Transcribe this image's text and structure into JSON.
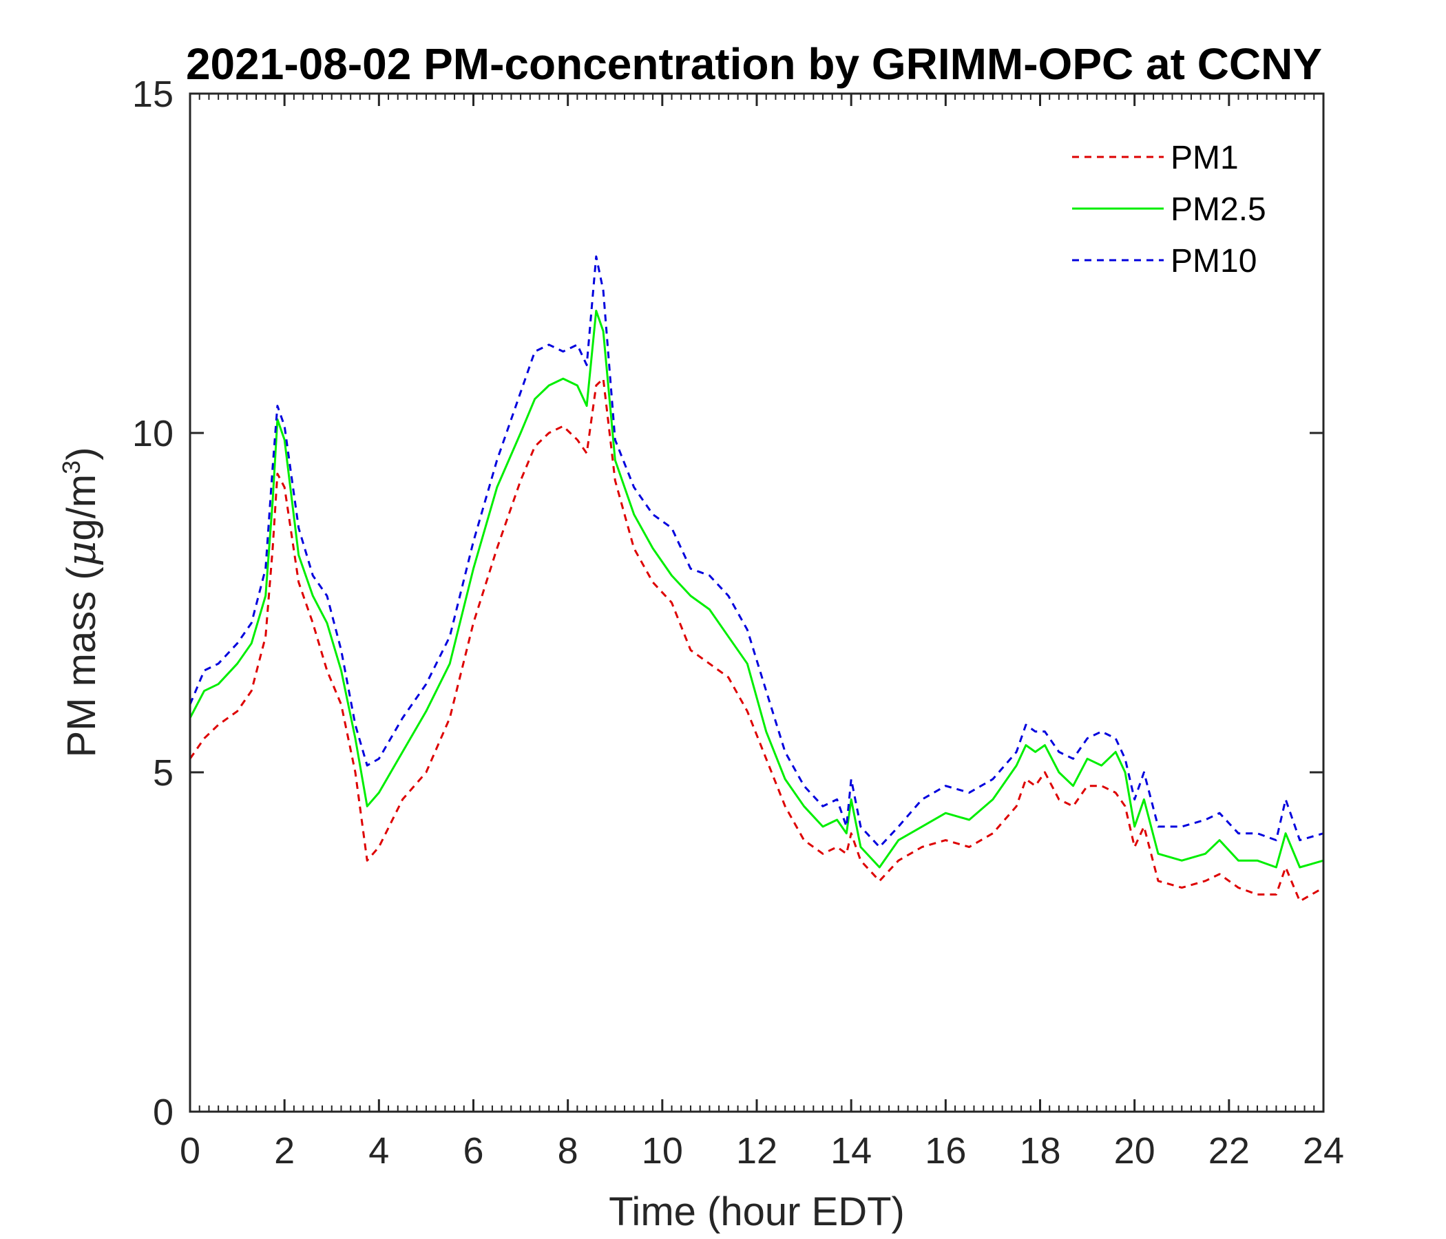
{
  "chart_data": {
    "type": "line",
    "title": "2021-08-02 PM-concentration by GRIMM-OPC at CCNY",
    "xlabel": "Time (hour EDT)",
    "ylabel_main": "PM mass (",
    "ylabel_mu": "μ",
    "ylabel_unit": "g/m",
    "ylabel_sup": "3",
    "ylabel_close": ")",
    "xlim": [
      0,
      24
    ],
    "ylim": [
      0,
      15
    ],
    "xticks": [
      "0",
      "2",
      "4",
      "6",
      "8",
      "10",
      "12",
      "14",
      "16",
      "18",
      "20",
      "22",
      "24"
    ],
    "yticks": [
      "0",
      "5",
      "10",
      "15"
    ],
    "grid": false,
    "legend_position": "top-right",
    "series": [
      {
        "name": "PM1",
        "color": "#dd0000",
        "dash": "dashed",
        "x": [
          0,
          0.3,
          0.6,
          1.0,
          1.3,
          1.6,
          1.75,
          1.85,
          2.0,
          2.3,
          2.6,
          2.9,
          3.2,
          3.5,
          3.75,
          4.0,
          4.5,
          5.0,
          5.5,
          6.0,
          6.5,
          7.0,
          7.3,
          7.6,
          7.9,
          8.2,
          8.4,
          8.6,
          8.75,
          9.0,
          9.4,
          9.8,
          10.2,
          10.6,
          11.0,
          11.4,
          11.8,
          12.2,
          12.6,
          13.0,
          13.4,
          13.7,
          13.9,
          14.0,
          14.2,
          14.6,
          15.0,
          15.5,
          16.0,
          16.5,
          17.0,
          17.5,
          17.7,
          17.9,
          18.1,
          18.4,
          18.7,
          19.0,
          19.3,
          19.6,
          19.8,
          20.0,
          20.2,
          20.5,
          21.0,
          21.5,
          21.8,
          22.2,
          22.6,
          23.0,
          23.2,
          23.5,
          24.0
        ],
        "y": [
          5.2,
          5.5,
          5.7,
          5.9,
          6.2,
          7.0,
          8.3,
          9.4,
          9.2,
          7.8,
          7.2,
          6.5,
          6.0,
          5.0,
          3.7,
          3.9,
          4.6,
          5.0,
          5.8,
          7.2,
          8.3,
          9.3,
          9.8,
          10.0,
          10.1,
          9.9,
          9.7,
          10.7,
          10.8,
          9.3,
          8.3,
          7.8,
          7.5,
          6.8,
          6.6,
          6.4,
          5.9,
          5.2,
          4.5,
          4.0,
          3.8,
          3.9,
          3.8,
          4.1,
          3.7,
          3.4,
          3.7,
          3.9,
          4.0,
          3.9,
          4.1,
          4.5,
          4.9,
          4.8,
          5.0,
          4.6,
          4.5,
          4.8,
          4.8,
          4.7,
          4.5,
          3.9,
          4.2,
          3.4,
          3.3,
          3.4,
          3.5,
          3.3,
          3.2,
          3.2,
          3.6,
          3.1,
          3.3
        ]
      },
      {
        "name": "PM2.5",
        "color": "#00ee00",
        "dash": "solid",
        "x": [
          0,
          0.3,
          0.6,
          1.0,
          1.3,
          1.6,
          1.75,
          1.85,
          2.0,
          2.3,
          2.6,
          2.9,
          3.2,
          3.5,
          3.75,
          4.0,
          4.5,
          5.0,
          5.5,
          6.0,
          6.5,
          7.0,
          7.3,
          7.6,
          7.9,
          8.2,
          8.4,
          8.6,
          8.75,
          9.0,
          9.4,
          9.8,
          10.2,
          10.6,
          11.0,
          11.4,
          11.8,
          12.2,
          12.6,
          13.0,
          13.4,
          13.7,
          13.9,
          14.0,
          14.2,
          14.6,
          15.0,
          15.5,
          16.0,
          16.5,
          17.0,
          17.5,
          17.7,
          17.9,
          18.1,
          18.4,
          18.7,
          19.0,
          19.3,
          19.6,
          19.8,
          20.0,
          20.2,
          20.5,
          21.0,
          21.5,
          21.8,
          22.2,
          22.6,
          23.0,
          23.2,
          23.5,
          24.0
        ],
        "y": [
          5.8,
          6.2,
          6.3,
          6.6,
          6.9,
          7.6,
          9.0,
          10.2,
          9.9,
          8.2,
          7.6,
          7.2,
          6.5,
          5.5,
          4.5,
          4.7,
          5.3,
          5.9,
          6.6,
          8.0,
          9.2,
          10.0,
          10.5,
          10.7,
          10.8,
          10.7,
          10.4,
          11.8,
          11.5,
          9.6,
          8.8,
          8.3,
          7.9,
          7.6,
          7.4,
          7.0,
          6.6,
          5.6,
          4.9,
          4.5,
          4.2,
          4.3,
          4.1,
          4.6,
          3.9,
          3.6,
          4.0,
          4.2,
          4.4,
          4.3,
          4.6,
          5.1,
          5.4,
          5.3,
          5.4,
          5.0,
          4.8,
          5.2,
          5.1,
          5.3,
          5.0,
          4.2,
          4.6,
          3.8,
          3.7,
          3.8,
          4.0,
          3.7,
          3.7,
          3.6,
          4.1,
          3.6,
          3.7
        ]
      },
      {
        "name": "PM10",
        "color": "#0000dd",
        "dash": "dashed",
        "x": [
          0,
          0.3,
          0.6,
          1.0,
          1.3,
          1.6,
          1.75,
          1.85,
          2.0,
          2.3,
          2.6,
          2.9,
          3.2,
          3.5,
          3.75,
          4.0,
          4.5,
          5.0,
          5.5,
          6.0,
          6.5,
          7.0,
          7.3,
          7.6,
          7.9,
          8.2,
          8.4,
          8.6,
          8.75,
          9.0,
          9.4,
          9.8,
          10.2,
          10.6,
          11.0,
          11.4,
          11.8,
          12.2,
          12.6,
          13.0,
          13.4,
          13.7,
          13.9,
          14.0,
          14.2,
          14.6,
          15.0,
          15.5,
          16.0,
          16.5,
          17.0,
          17.5,
          17.7,
          17.9,
          18.1,
          18.4,
          18.7,
          19.0,
          19.3,
          19.6,
          19.8,
          20.0,
          20.2,
          20.5,
          21.0,
          21.5,
          21.8,
          22.2,
          22.6,
          23.0,
          23.2,
          23.5,
          24.0
        ],
        "y": [
          6.0,
          6.5,
          6.6,
          6.9,
          7.2,
          8.0,
          9.5,
          10.4,
          10.1,
          8.6,
          7.9,
          7.6,
          6.8,
          5.7,
          5.1,
          5.2,
          5.8,
          6.3,
          7.0,
          8.4,
          9.6,
          10.6,
          11.2,
          11.3,
          11.2,
          11.3,
          11.0,
          12.6,
          12.1,
          9.9,
          9.2,
          8.8,
          8.6,
          8.0,
          7.9,
          7.6,
          7.1,
          6.2,
          5.3,
          4.8,
          4.5,
          4.6,
          4.2,
          4.9,
          4.2,
          3.9,
          4.2,
          4.6,
          4.8,
          4.7,
          4.9,
          5.3,
          5.7,
          5.6,
          5.6,
          5.3,
          5.2,
          5.5,
          5.6,
          5.5,
          5.2,
          4.6,
          5.0,
          4.2,
          4.2,
          4.3,
          4.4,
          4.1,
          4.1,
          4.0,
          4.6,
          4.0,
          4.1
        ]
      }
    ]
  }
}
